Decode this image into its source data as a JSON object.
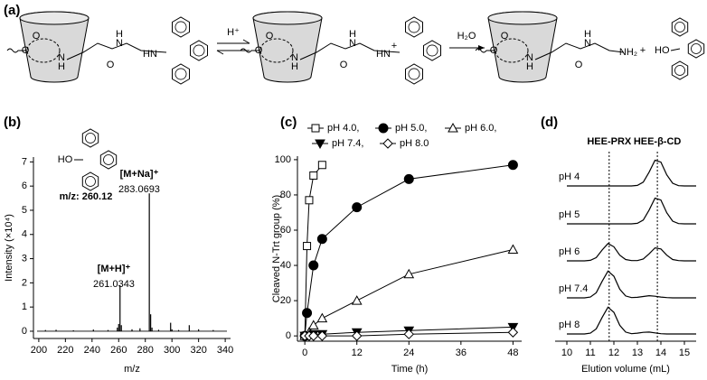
{
  "scheme": {
    "panel_label": "(a)",
    "molecules": [
      {
        "atoms": [
          "O",
          "O",
          "N",
          "H",
          "H",
          "N",
          "O",
          "N",
          "H"
        ]
      },
      {
        "atoms": [
          "O",
          "O",
          "N",
          "H",
          "H",
          "N",
          "O",
          "N",
          "H",
          "+"
        ]
      },
      {
        "atoms": [
          "O",
          "O",
          "N",
          "H",
          "H",
          "N",
          "O",
          "NH₂"
        ]
      }
    ],
    "reagents": [
      "H⁺",
      "H₂O"
    ],
    "plus": "+",
    "byproduct": "HO"
  },
  "chart_data": [
    {
      "type": "spectrum",
      "panel_label": "(b)",
      "y_label": "Intensity (×10⁴)",
      "x_label": "m/z",
      "x": [
        205,
        213,
        226,
        241,
        252,
        259,
        260,
        261,
        262,
        270,
        276,
        283,
        284,
        285,
        290,
        299,
        300,
        305,
        313,
        320,
        331
      ],
      "values": [
        0.05,
        0.06,
        0.04,
        0.07,
        0.05,
        0.15,
        0.3,
        1.9,
        0.25,
        0.08,
        0.12,
        5.7,
        0.7,
        0.15,
        0.06,
        0.35,
        0.08,
        0.05,
        0.25,
        0.08,
        0.05
      ],
      "color": "#000000",
      "xlim": [
        196,
        344
      ],
      "xticks": [
        200,
        220,
        240,
        260,
        280,
        300,
        320,
        340
      ],
      "ylim": [
        -0.3,
        7.2
      ],
      "yticks": [
        0,
        1,
        2,
        3,
        4,
        5,
        6,
        7
      ],
      "annotations": [
        "[M+Na]⁺",
        "283.0693",
        "[M+H]⁺",
        "261.0343",
        "HO",
        "m/z: 260.12"
      ]
    },
    {
      "type": "line",
      "panel_label": "(c)",
      "y_label": "Cleaved N-Trt group (%)",
      "x_label": "Time (h)",
      "series": [
        {
          "name": "pH 4.0,",
          "marker": "square",
          "filled": false,
          "color": "#000000",
          "x": [
            0,
            0.5,
            1,
            2,
            4
          ],
          "values": [
            0,
            51,
            77,
            91,
            97
          ]
        },
        {
          "name": "pH 5.0,",
          "marker": "circle",
          "filled": true,
          "color": "#000000",
          "x": [
            0,
            0.5,
            2,
            4,
            12,
            24,
            48
          ],
          "values": [
            0,
            13,
            40,
            55,
            73,
            89,
            97
          ]
        },
        {
          "name": "pH 6.0,",
          "marker": "triangle",
          "filled": false,
          "color": "#000000",
          "x": [
            0,
            1,
            2,
            4,
            12,
            24,
            48
          ],
          "values": [
            0,
            2,
            6,
            10,
            20,
            35,
            49
          ]
        },
        {
          "name": "pH 7.4,",
          "marker": "triangle-down",
          "filled": true,
          "color": "#000000",
          "x": [
            0,
            1,
            2,
            4,
            12,
            24,
            48
          ],
          "values": [
            0,
            0,
            1,
            1,
            2,
            3,
            5
          ]
        },
        {
          "name": "pH 8.0",
          "marker": "diamond",
          "filled": false,
          "color": "#000000",
          "x": [
            0,
            1,
            2,
            4,
            12,
            24,
            48
          ],
          "values": [
            0,
            0,
            0,
            0,
            0,
            1,
            2
          ]
        }
      ],
      "xlim": [
        -1.7,
        50
      ],
      "xticks": [
        0,
        12,
        24,
        36,
        48
      ],
      "ylim": [
        -3,
        102
      ],
      "yticks": [
        0,
        20,
        40,
        60,
        80,
        100
      ]
    },
    {
      "type": "chromatogram",
      "panel_label": "(d)",
      "x_label": "Elution volume (mL)",
      "x": [
        10,
        10.25,
        10.5,
        10.75,
        11,
        11.25,
        11.5,
        11.75,
        12,
        12.25,
        12.5,
        12.75,
        13,
        13.25,
        13.5,
        13.75,
        14,
        14.25,
        14.5,
        14.75,
        15,
        15.25,
        15.5
      ],
      "series": [
        {
          "name": "pH 4",
          "color": "#000000",
          "values": [
            0,
            0,
            0,
            0,
            0,
            0,
            0,
            0,
            0,
            0,
            0,
            0,
            0.02,
            0.14,
            0.51,
            0.95,
            0.88,
            0.41,
            0.1,
            0.01,
            0,
            0,
            0
          ]
        },
        {
          "name": "pH 5",
          "color": "#000000",
          "values": [
            0,
            0,
            0,
            0,
            0,
            0,
            0,
            0,
            0,
            0,
            0,
            0,
            0.02,
            0.14,
            0.51,
            0.95,
            0.88,
            0.41,
            0.1,
            0.01,
            0,
            0,
            0
          ]
        },
        {
          "name": "pH 6",
          "color": "#000000",
          "values": [
            0,
            0,
            0,
            0,
            0.02,
            0.12,
            0.4,
            0.64,
            0.52,
            0.21,
            0.05,
            0.01,
            0.01,
            0.07,
            0.26,
            0.48,
            0.44,
            0.21,
            0.05,
            0.01,
            0,
            0,
            0
          ]
        },
        {
          "name": "pH 7.4",
          "color": "#000000",
          "values": [
            0,
            0,
            0,
            0,
            0.03,
            0.19,
            0.61,
            0.99,
            0.8,
            0.32,
            0.07,
            0.01,
            0.02,
            0.05,
            0.08,
            0.06,
            0.03,
            0.01,
            0,
            0,
            0,
            0,
            0
          ]
        },
        {
          "name": "pH 8",
          "color": "#000000",
          "values": [
            0,
            0,
            0,
            0,
            0.03,
            0.19,
            0.61,
            0.99,
            0.8,
            0.32,
            0.07,
            0.01,
            0.03,
            0.06,
            0.07,
            0.04,
            0.01,
            0,
            0,
            0,
            0,
            0,
            0
          ]
        }
      ],
      "reference_lines": [
        {
          "x": 11.8,
          "label": "HEE-PRX"
        },
        {
          "x": 13.85,
          "label": "HEE-β-CD"
        }
      ],
      "xlim": [
        9.5,
        15.5
      ],
      "xticks": [
        10,
        11,
        12,
        13,
        14,
        15
      ]
    }
  ]
}
